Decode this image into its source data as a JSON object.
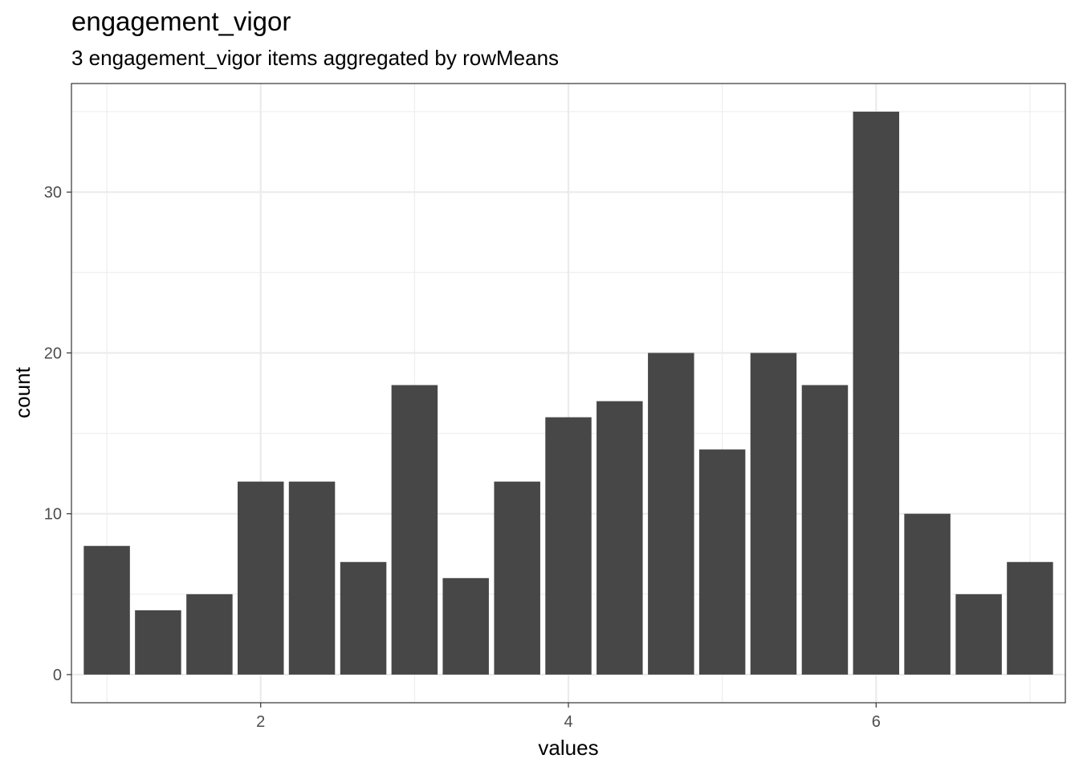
{
  "chart_data": {
    "type": "bar",
    "title": "engagement_vigor",
    "subtitle": "3 engagement_vigor items aggregated by rowMeans",
    "xlabel": "values",
    "ylabel": "count",
    "x": [
      1.0,
      1.333,
      1.667,
      2.0,
      2.333,
      2.667,
      3.0,
      3.333,
      3.667,
      4.0,
      4.333,
      4.667,
      5.0,
      5.333,
      5.667,
      6.0,
      6.333,
      6.667,
      7.0
    ],
    "values": [
      8,
      4,
      5,
      12,
      12,
      7,
      18,
      6,
      12,
      16,
      17,
      20,
      14,
      20,
      18,
      35,
      10,
      5,
      7
    ],
    "bar_width": 0.3,
    "xlim": [
      0.77,
      7.23
    ],
    "ylim": [
      -1.75,
      36.75
    ],
    "x_ticks": [
      2,
      4,
      6
    ],
    "x_minor_ticks": [
      1,
      3,
      5,
      7
    ],
    "y_ticks": [
      0,
      10,
      20,
      30
    ],
    "y_minor_ticks": [
      5,
      15,
      25,
      35
    ],
    "grid": true,
    "legend": "none",
    "colors": {
      "bar": "#474747",
      "grid": "#ebebeb",
      "panel_border": "#333333",
      "background": "#ffffff"
    }
  }
}
